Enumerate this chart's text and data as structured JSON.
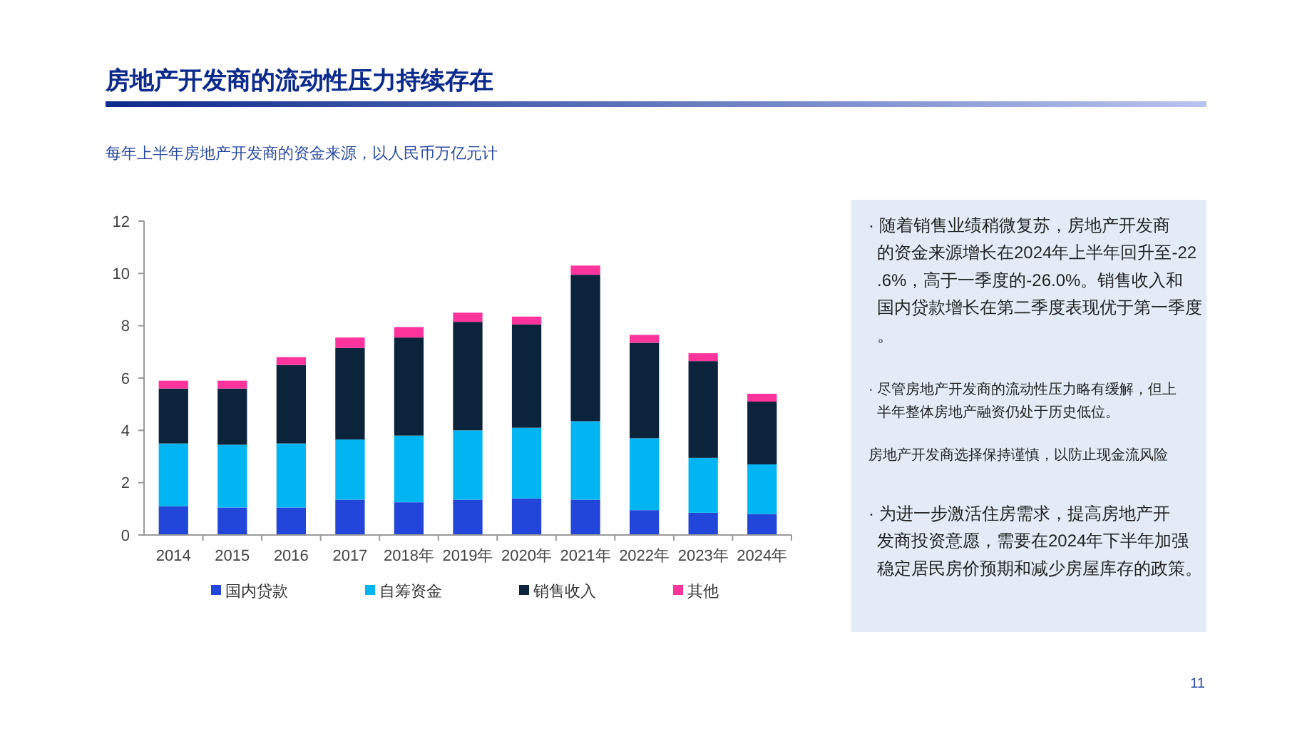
{
  "chart_data": {
    "type": "bar",
    "stacked": true,
    "title": "房地产开发商的流动性压力持续存在",
    "subtitle": "每年上半年房地产开发商的资金来源，以人民币万亿元计",
    "categories": [
      "2014",
      "2015",
      "2016",
      "2017",
      "2018年",
      "2019年",
      "2020年",
      "2021年",
      "2022年",
      "2023年",
      "2024年"
    ],
    "series": [
      {
        "name": "国内贷款",
        "color": "#2146d9",
        "values": [
          1.1,
          1.05,
          1.05,
          1.35,
          1.25,
          1.35,
          1.4,
          1.35,
          0.95,
          0.85,
          0.8
        ]
      },
      {
        "name": "自筹资金",
        "color": "#00b5f1",
        "values": [
          2.4,
          2.4,
          2.45,
          2.3,
          2.55,
          2.65,
          2.7,
          3.0,
          2.75,
          2.1,
          1.9
        ]
      },
      {
        "name": "销售收入",
        "color": "#0c233c",
        "values": [
          2.1,
          2.15,
          3.0,
          3.5,
          3.75,
          4.15,
          3.95,
          5.6,
          3.65,
          3.7,
          2.4
        ]
      },
      {
        "name": "其他",
        "color": "#fd349c",
        "values": [
          0.3,
          0.3,
          0.3,
          0.4,
          0.4,
          0.35,
          0.3,
          0.35,
          0.3,
          0.3,
          0.3
        ]
      }
    ],
    "ylim": [
      0,
      12
    ],
    "yticks": [
      0,
      2,
      4,
      6,
      8,
      10,
      12
    ],
    "grid": false,
    "legend": "bottom",
    "annotations": [
      "· 随着销售业绩稍微复苏，房地产开发商的资金来源增长在2024年上半年回升至-22.6%，高于一季度的-26.0%。销售收入和国内贷款增长在第二季度表现优于第一季度。",
      "· 尽管房地产开发商的流动性压力略有缓解，但上半年整体房地产融资仍处于历史低位。",
      "房地产开发商选择保持谨慎，以防止现金流风险",
      "· 为进一步激活住房需求，提高房地产开发商投资意愿，需要在2024年下半年加强稳定居民房价预期和减少房屋库存的政策。",
      "11"
    ]
  }
}
